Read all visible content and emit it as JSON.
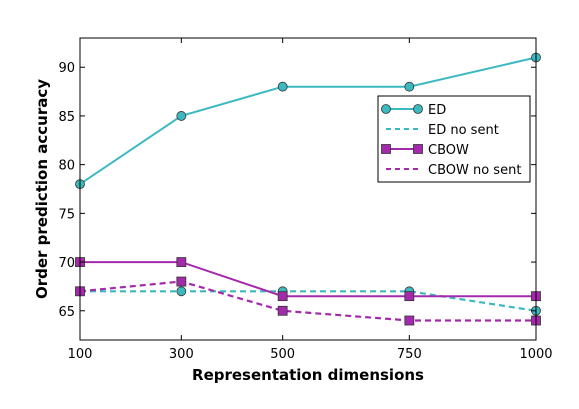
{
  "chart_data": {
    "type": "line",
    "x": [
      100,
      300,
      500,
      750,
      1000
    ],
    "xticks": [
      100,
      300,
      500,
      750,
      1000
    ],
    "yticks": [
      65,
      70,
      75,
      80,
      85,
      90
    ],
    "xlim": [
      100,
      1000
    ],
    "ylim": [
      62,
      93
    ],
    "xlabel": "Representation dimensions",
    "ylabel": "Order prediction accuracy",
    "grid": false,
    "legend_position": "center-right",
    "series": [
      {
        "name": "ED",
        "values": [
          78,
          85,
          88,
          88,
          91
        ],
        "color": "#3cb9c0",
        "line": "solid",
        "marker": "circle"
      },
      {
        "name": "ED no sent",
        "values": [
          67,
          67,
          67,
          67,
          65
        ],
        "color": "#3cb9c0",
        "line": "dashed",
        "marker": "circle"
      },
      {
        "name": "CBOW",
        "values": [
          70,
          70,
          66.5,
          66.5,
          66.5
        ],
        "color": "#a32bab",
        "line": "solid",
        "marker": "square"
      },
      {
        "name": "CBOW no sent",
        "values": [
          67,
          68,
          65,
          64,
          64
        ],
        "color": "#a32bab",
        "line": "dashed",
        "marker": "square"
      }
    ]
  }
}
